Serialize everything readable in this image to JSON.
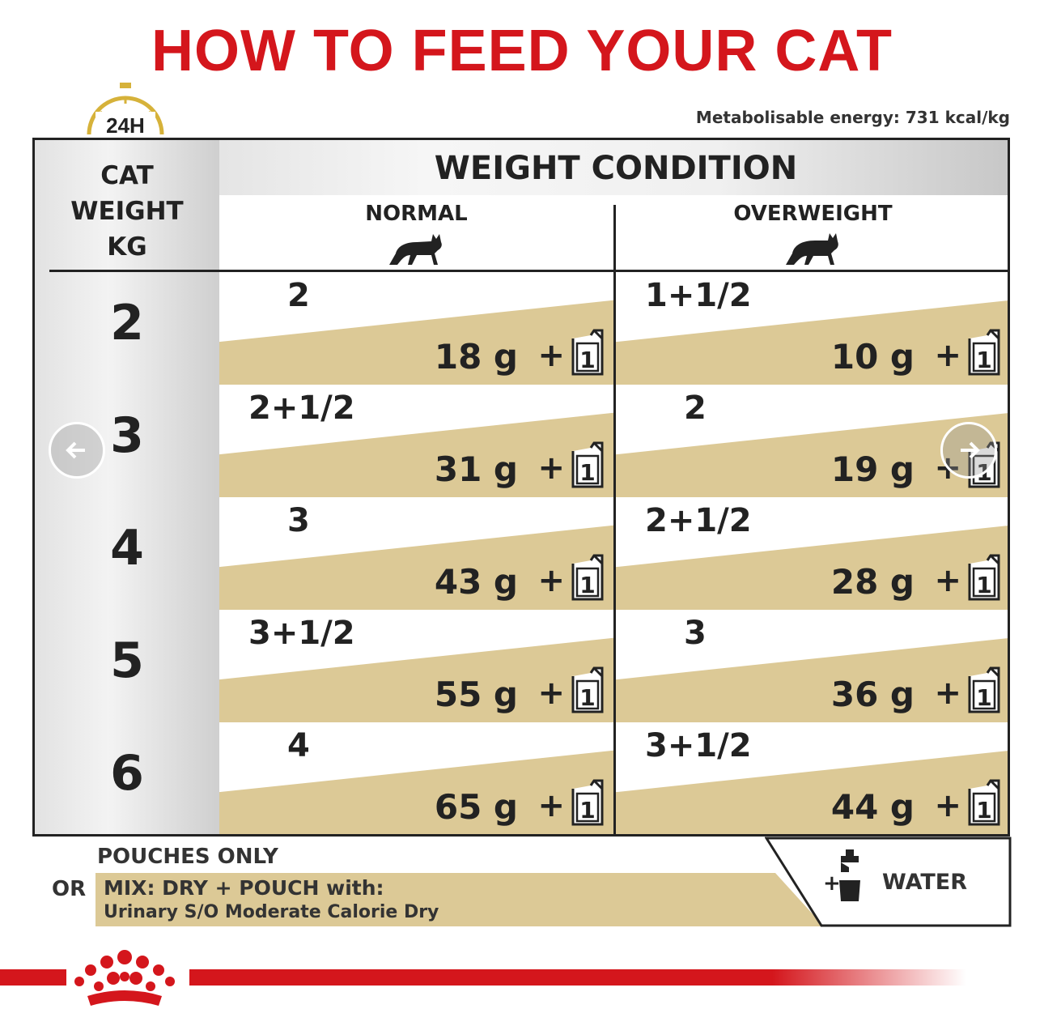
{
  "title": "HOW TO FEED YOUR CAT",
  "clock_label": "24H",
  "energy": "Metabolisable energy: 731 kcal/kg",
  "table": {
    "weight_header": [
      "CAT",
      "WEIGHT",
      "KG"
    ],
    "condition_header": "WEIGHT CONDITION",
    "col_normal": "NORMAL",
    "col_overweight": "OVERWEIGHT",
    "rows": [
      {
        "kg": "2",
        "normal_count": "2",
        "normal_grams": "18 g",
        "over_count": "1+1/2",
        "over_grams": "10 g"
      },
      {
        "kg": "3",
        "normal_count": "2+1/2",
        "normal_grams": "31 g",
        "over_count": "2",
        "over_grams": "19 g"
      },
      {
        "kg": "4",
        "normal_count": "3",
        "normal_grams": "43 g",
        "over_count": "2+1/2",
        "over_grams": "28 g"
      },
      {
        "kg": "5",
        "normal_count": "3+1/2",
        "normal_grams": "55 g",
        "over_count": "3",
        "over_grams": "36 g"
      },
      {
        "kg": "6",
        "normal_count": "4",
        "normal_grams": "65 g",
        "over_count": "3+1/2",
        "over_grams": "44 g"
      }
    ],
    "plus_sign": "+",
    "pouch_digit": "1"
  },
  "legend": {
    "or": "OR",
    "pouches_only": "POUCHES ONLY",
    "mix": "MIX: DRY + POUCH with:",
    "mix_product": "Urinary S/O Moderate Calorie Dry",
    "water": "WATER"
  },
  "colors": {
    "brand_red": "#d4161c",
    "wedge_tan": "#dcc996",
    "ink": "#222222"
  },
  "nav": {
    "prev_icon": "arrow-left-icon",
    "next_icon": "arrow-right-icon"
  }
}
